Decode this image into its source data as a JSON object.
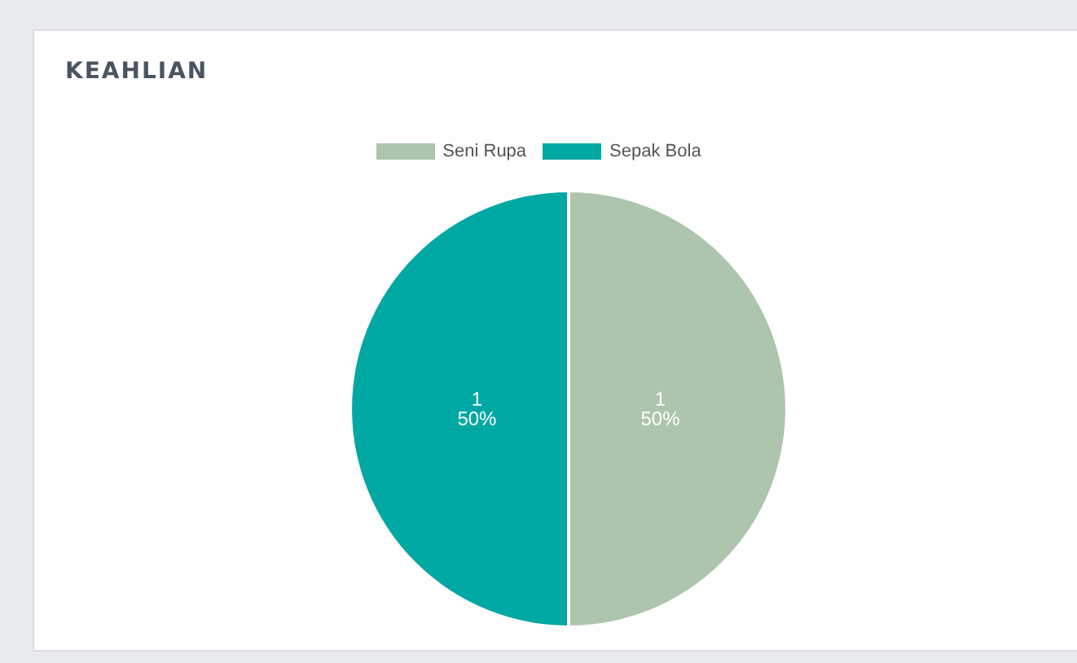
{
  "chart_data": {
    "type": "pie",
    "title": "KEAHLIAN",
    "categories": [
      "Seni Rupa",
      "Sepak Bola"
    ],
    "values": [
      1,
      1
    ],
    "colors": [
      "#adc4ad",
      "#00a8a3"
    ],
    "value_labels": [
      "1\n50%",
      "1\n50%"
    ],
    "legend": "top"
  }
}
